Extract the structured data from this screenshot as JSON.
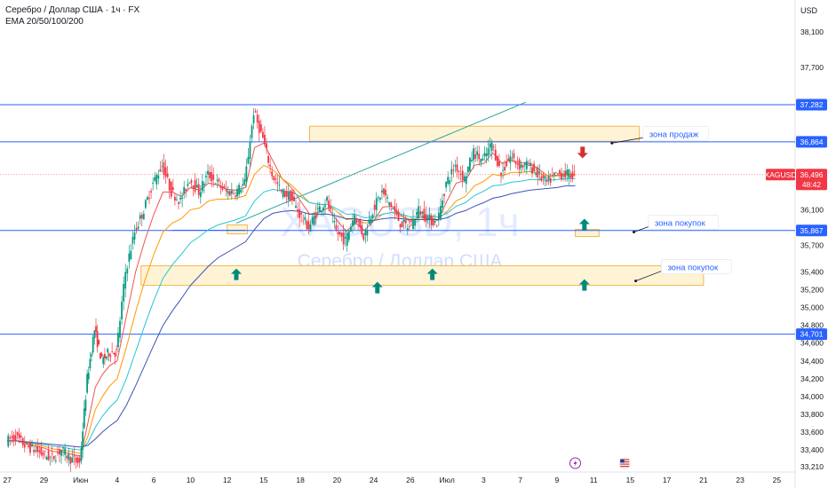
{
  "header": {
    "title": "Серебро / Доллар США · 1ч · FX",
    "indicator": "EMA 20/50/100/200",
    "currency": "USD"
  },
  "watermark": {
    "symbol": "XAGUSD, 1ч",
    "name": "Серебро / Доллар США"
  },
  "chart_data": {
    "type": "line",
    "title": "Серебро / Доллар США · 1ч · FX",
    "y_axis": {
      "ticks": [
        "38,100",
        "37,700",
        "36,100",
        "35,700",
        "35,400",
        "35,200",
        "35,000",
        "34,800",
        "34,600",
        "34,400",
        "34,200",
        "34,000",
        "33,800",
        "33,600",
        "33,400",
        "33,210"
      ],
      "tick_values": [
        38.1,
        37.7,
        36.1,
        35.7,
        35.4,
        35.2,
        35.0,
        34.8,
        34.6,
        34.4,
        34.2,
        34.0,
        33.8,
        33.6,
        33.4,
        33.21
      ],
      "range": [
        33.15,
        38.4
      ]
    },
    "x_axis": {
      "ticks": [
        "27",
        "29",
        "Июн",
        "4",
        "6",
        "10",
        "12",
        "15",
        "18",
        "20",
        "24",
        "26",
        "Июл",
        "3",
        "7",
        "9",
        "11",
        "15",
        "17",
        "21",
        "23",
        "25"
      ],
      "tick_index": [
        0,
        2,
        4,
        6,
        8,
        10,
        12,
        14,
        16,
        18,
        20,
        22,
        24,
        26,
        28,
        30,
        32,
        34,
        36,
        38,
        40,
        42
      ],
      "range": [
        -0.3,
        43
      ]
    },
    "series_close": {
      "x": [
        0,
        0.5,
        1,
        1.5,
        2,
        2.5,
        3,
        3.5,
        4,
        4.4,
        4.8,
        5.2,
        5.6,
        6,
        6.5,
        7,
        7.5,
        8,
        8.5,
        9,
        9.5,
        10,
        10.5,
        11,
        11.5,
        12,
        12.5,
        13,
        13.5,
        14,
        14.5,
        15,
        15.5,
        16,
        16.5,
        17,
        17.5,
        18,
        18.5,
        19,
        19.5,
        20,
        20.5,
        21,
        21.5,
        22,
        22.5,
        23,
        23.5,
        24,
        24.5,
        25,
        25.5,
        26,
        26.5,
        27,
        27.5,
        28,
        28.5,
        29,
        29.5,
        30,
        30.5,
        31
      ],
      "values": [
        33.5,
        33.55,
        33.45,
        33.4,
        33.35,
        33.3,
        33.4,
        33.3,
        33.25,
        34.2,
        34.75,
        34.4,
        34.5,
        34.5,
        35.4,
        35.85,
        36.1,
        36.4,
        36.6,
        36.3,
        36.2,
        36.45,
        36.3,
        36.5,
        36.4,
        36.3,
        36.3,
        36.4,
        37.2,
        36.9,
        36.5,
        36.3,
        36.25,
        36.05,
        35.9,
        36.1,
        36.2,
        35.85,
        35.75,
        36.05,
        35.8,
        36.1,
        36.3,
        36.15,
        35.95,
        35.9,
        36.1,
        36.0,
        35.95,
        36.4,
        36.6,
        36.45,
        36.75,
        36.65,
        36.85,
        36.5,
        36.7,
        36.6,
        36.6,
        36.5,
        36.4,
        36.5,
        36.5,
        36.496
      ]
    },
    "series": [
      {
        "name": "EMA 20",
        "color": "#ef5350",
        "values": [
          33.5,
          33.5,
          33.47,
          33.44,
          33.42,
          33.38,
          33.38,
          33.35,
          33.33,
          33.7,
          34.1,
          34.25,
          34.35,
          34.4,
          34.9,
          35.4,
          35.75,
          36.05,
          36.3,
          36.3,
          36.25,
          36.35,
          36.32,
          36.4,
          36.38,
          36.33,
          36.32,
          36.35,
          36.8,
          36.85,
          36.65,
          36.45,
          36.35,
          36.2,
          36.05,
          36.07,
          36.12,
          35.98,
          35.86,
          35.95,
          35.87,
          35.98,
          36.13,
          36.14,
          36.04,
          35.97,
          36.03,
          36.01,
          35.98,
          36.2,
          36.4,
          36.43,
          36.6,
          36.62,
          36.74,
          36.62,
          36.66,
          36.63,
          36.62,
          36.56,
          36.48,
          36.49,
          36.5,
          36.5
        ]
      },
      {
        "name": "EMA 50",
        "color": "#ff9800",
        "values": [
          33.5,
          33.5,
          33.48,
          33.46,
          33.44,
          33.41,
          33.4,
          33.38,
          33.36,
          33.55,
          33.85,
          34.0,
          34.12,
          34.2,
          34.55,
          34.95,
          35.3,
          35.6,
          35.85,
          35.95,
          36.0,
          36.1,
          36.12,
          36.2,
          36.22,
          36.22,
          36.23,
          36.26,
          36.5,
          36.6,
          36.55,
          36.45,
          36.38,
          36.28,
          36.18,
          36.16,
          36.16,
          36.08,
          35.99,
          36.0,
          35.95,
          35.98,
          36.05,
          36.07,
          36.03,
          35.99,
          36.01,
          36.01,
          35.99,
          36.08,
          36.2,
          36.25,
          36.37,
          36.42,
          36.5,
          36.48,
          36.52,
          36.52,
          36.53,
          36.51,
          36.48,
          36.48,
          36.49,
          36.49
        ]
      },
      {
        "name": "EMA 100",
        "color": "#26c6da",
        "values": [
          33.5,
          33.5,
          33.49,
          33.47,
          33.46,
          33.44,
          33.43,
          33.41,
          33.4,
          33.48,
          33.65,
          33.78,
          33.88,
          33.96,
          34.2,
          34.5,
          34.8,
          35.08,
          35.33,
          35.48,
          35.6,
          35.73,
          35.8,
          35.88,
          35.93,
          35.96,
          35.99,
          36.03,
          36.2,
          36.3,
          36.33,
          36.31,
          36.3,
          36.25,
          36.18,
          36.16,
          36.16,
          36.11,
          36.05,
          36.05,
          36.01,
          36.02,
          36.05,
          36.07,
          36.05,
          36.02,
          36.03,
          36.03,
          36.02,
          36.06,
          36.14,
          36.18,
          36.26,
          36.31,
          36.37,
          36.38,
          36.41,
          36.42,
          36.44,
          36.44,
          36.43,
          36.44,
          36.45,
          36.45
        ]
      },
      {
        "name": "EMA 200",
        "color": "#3f51b5",
        "values": [
          33.5,
          33.5,
          33.49,
          33.48,
          33.47,
          33.46,
          33.45,
          33.44,
          33.43,
          33.45,
          33.52,
          33.6,
          33.67,
          33.73,
          33.9,
          34.12,
          34.35,
          34.58,
          34.8,
          34.96,
          35.1,
          35.25,
          35.36,
          35.47,
          35.56,
          35.62,
          35.68,
          35.74,
          35.88,
          36.0,
          36.06,
          36.08,
          36.09,
          36.08,
          36.05,
          36.05,
          36.05,
          36.03,
          36.0,
          36.0,
          35.98,
          35.98,
          36.0,
          36.01,
          36.0,
          35.99,
          35.99,
          35.99,
          35.99,
          36.01,
          36.06,
          36.09,
          36.14,
          36.18,
          36.23,
          36.25,
          36.28,
          36.3,
          36.32,
          36.33,
          36.34,
          36.35,
          36.37,
          36.37
        ]
      }
    ],
    "levels": [
      {
        "value": 37.282,
        "label": "37,282",
        "color": "#2962ff"
      },
      {
        "value": 36.864,
        "label": "36,864",
        "color": "#2962ff"
      },
      {
        "value": 35.867,
        "label": "35,867",
        "color": "#2962ff"
      },
      {
        "value": 34.701,
        "label": "34,701",
        "color": "#2962ff"
      }
    ],
    "current_price": {
      "label": "36,496",
      "value": 36.496,
      "symbol": "XAGUSD",
      "countdown": "48:42",
      "color": "#f23645"
    },
    "zones": [
      {
        "x0": 16.5,
        "x1": 34.5,
        "y0": 36.87,
        "y1": 37.04
      },
      {
        "x0": 12,
        "x1": 13.1,
        "y0": 35.83,
        "y1": 35.93
      },
      {
        "x0": 31,
        "x1": 32.3,
        "y0": 35.8,
        "y1": 35.88
      },
      {
        "x0": 7.3,
        "x1": 38,
        "y0": 35.25,
        "y1": 35.47
      }
    ],
    "annotations": [
      {
        "text": "зона продаж",
        "kind": "sell",
        "x": 34.7,
        "y": 36.95,
        "anchor_x": 33,
        "anchor_y": 36.85
      },
      {
        "text": "зона покупок",
        "kind": "buy",
        "x": 35,
        "y": 35.95,
        "anchor_x": 34.2,
        "anchor_y": 35.85
      },
      {
        "text": "зона покупок",
        "kind": "buy",
        "x": 35.7,
        "y": 35.45,
        "anchor_x": 34.3,
        "anchor_y": 35.3
      }
    ],
    "arrows": [
      {
        "direction": "down",
        "x": 31.4,
        "y": 36.75,
        "color": "#d32f2f"
      },
      {
        "direction": "up",
        "x": 31.5,
        "y": 35.93,
        "color": "#00897b"
      },
      {
        "direction": "up",
        "x": 31.5,
        "y": 35.25,
        "color": "#00897b"
      },
      {
        "direction": "up",
        "x": 12.5,
        "y": 35.37,
        "color": "#00897b"
      },
      {
        "direction": "up",
        "x": 20.2,
        "y": 35.22,
        "color": "#00897b"
      },
      {
        "direction": "up",
        "x": 23.2,
        "y": 35.37,
        "color": "#00897b"
      }
    ],
    "trendlines": [
      {
        "x0": 12.5,
        "x1": 28.3,
        "y0": 35.95,
        "y1": 37.31,
        "color": "#26a69a"
      },
      {
        "x0": 9,
        "x1": 13,
        "y0": 35.87,
        "y1": 35.87,
        "color": "#2962ff"
      }
    ],
    "events": [
      {
        "icon": "lightning-icon",
        "x": 31
      },
      {
        "icon": "us-flag-icon",
        "x": 33.7
      }
    ],
    "grid": false,
    "colors": {
      "up": "#089981",
      "down": "#f23645",
      "level": "#2962ff",
      "zone_fill": "#fff3d6",
      "zone_stroke": "#f2b84b",
      "text": "#131722"
    }
  }
}
